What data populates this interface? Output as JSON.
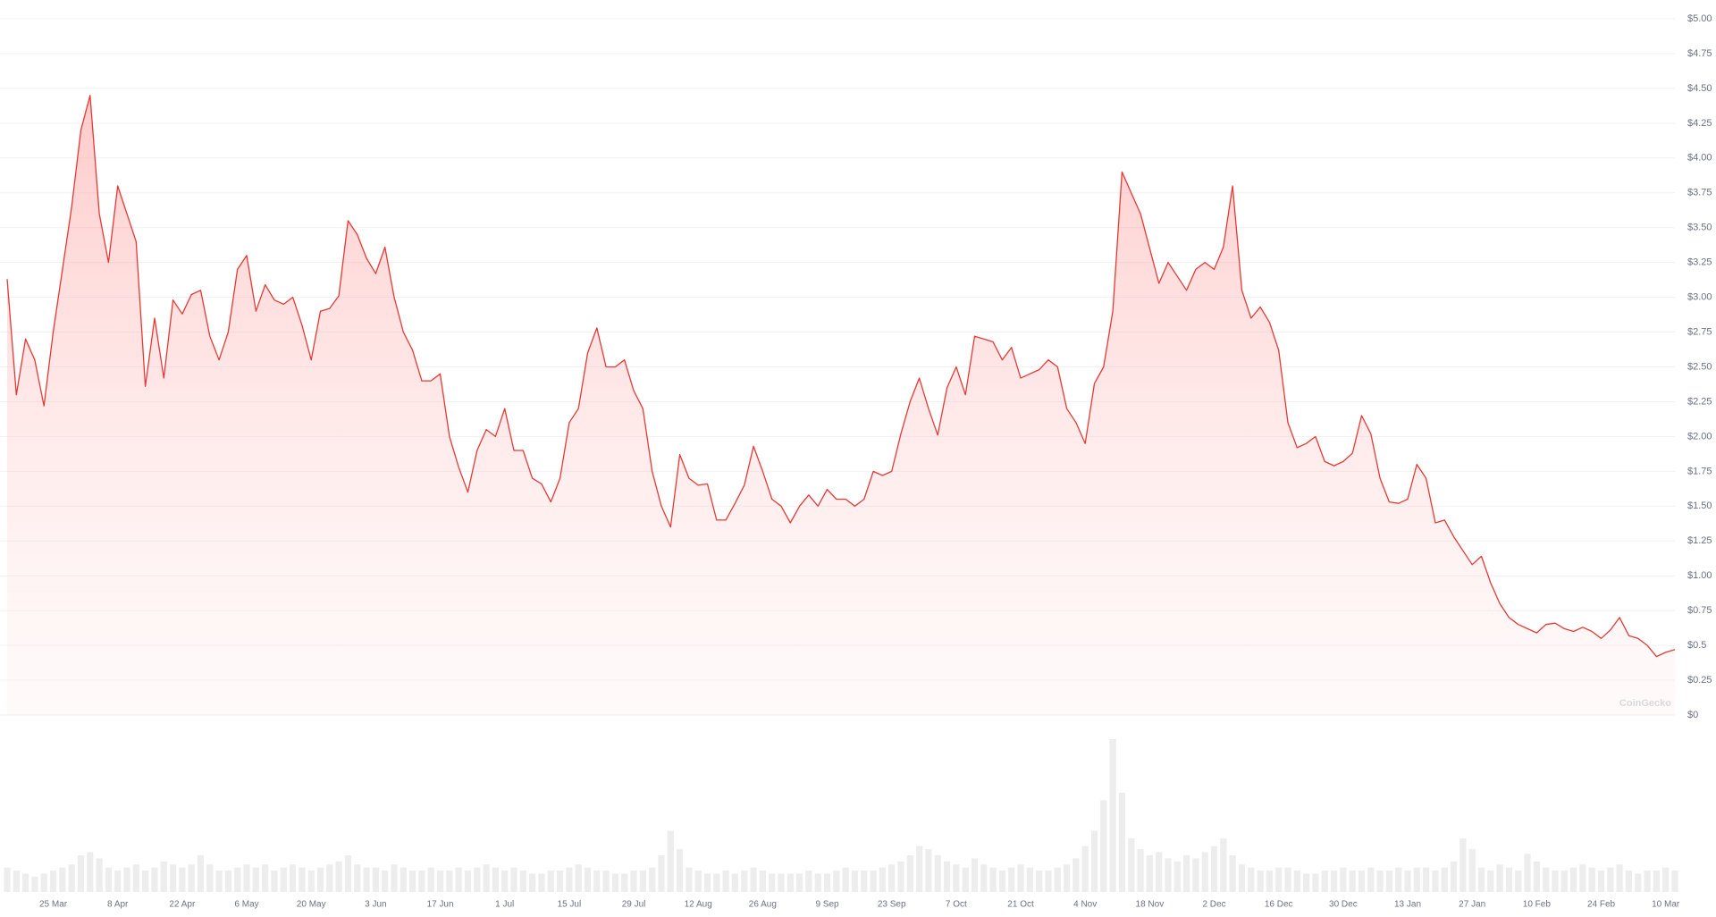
{
  "chart_data": {
    "type": "area",
    "watermark": "CoinGecko",
    "categories": [
      null,
      null,
      null,
      null,
      null,
      "25 Mar",
      null,
      null,
      null,
      null,
      null,
      null,
      "8 Apr",
      null,
      null,
      null,
      null,
      null,
      null,
      "22 Apr",
      null,
      null,
      null,
      null,
      null,
      null,
      "6 May",
      null,
      null,
      null,
      null,
      null,
      null,
      "20 May",
      null,
      null,
      null,
      null,
      null,
      null,
      "3 Jun",
      null,
      null,
      null,
      null,
      null,
      null,
      "17 Jun",
      null,
      null,
      null,
      null,
      null,
      null,
      "1 Jul",
      null,
      null,
      null,
      null,
      null,
      null,
      "15 Jul",
      null,
      null,
      null,
      null,
      null,
      null,
      "29 Jul",
      null,
      null,
      null,
      null,
      null,
      null,
      "12 Aug",
      null,
      null,
      null,
      null,
      null,
      null,
      "26 Aug",
      null,
      null,
      null,
      null,
      null,
      null,
      "9 Sep",
      null,
      null,
      null,
      null,
      null,
      null,
      "23 Sep",
      null,
      null,
      null,
      null,
      null,
      null,
      "7 Oct",
      null,
      null,
      null,
      null,
      null,
      null,
      "21 Oct",
      null,
      null,
      null,
      null,
      null,
      null,
      "4 Nov",
      null,
      null,
      null,
      null,
      null,
      null,
      "18 Nov",
      null,
      null,
      null,
      null,
      null,
      null,
      "2 Dec",
      null,
      null,
      null,
      null,
      null,
      null,
      "16 Dec",
      null,
      null,
      null,
      null,
      null,
      null,
      "30 Dec",
      null,
      null,
      null,
      null,
      null,
      null,
      "13 Jan",
      null,
      null,
      null,
      null,
      null,
      null,
      "27 Jan",
      null,
      null,
      null,
      null,
      null,
      null,
      "10 Feb",
      null,
      null,
      null,
      null,
      null,
      null,
      "24 Feb",
      null,
      null,
      null,
      null,
      null,
      null,
      "10 Mar",
      null
    ],
    "values": [
      3.13,
      2.3,
      2.7,
      2.55,
      2.22,
      2.75,
      3.2,
      3.65,
      4.2,
      4.45,
      3.6,
      3.25,
      3.8,
      3.6,
      3.4,
      2.36,
      2.85,
      2.42,
      2.98,
      2.88,
      3.02,
      3.05,
      2.72,
      2.55,
      2.75,
      3.2,
      3.3,
      2.9,
      3.09,
      2.98,
      2.95,
      3.0,
      2.8,
      2.55,
      2.9,
      2.92,
      3.01,
      3.55,
      3.45,
      3.28,
      3.17,
      3.36,
      3.0,
      2.75,
      2.62,
      2.4,
      2.4,
      2.45,
      2.0,
      1.78,
      1.6,
      1.9,
      2.05,
      2.0,
      2.2,
      1.9,
      1.9,
      1.7,
      1.66,
      1.53,
      1.7,
      2.1,
      2.2,
      2.6,
      2.78,
      2.5,
      2.5,
      2.55,
      2.33,
      2.2,
      1.75,
      1.5,
      1.35,
      1.87,
      1.7,
      1.65,
      1.66,
      1.4,
      1.4,
      1.52,
      1.65,
      1.93,
      1.75,
      1.55,
      1.5,
      1.38,
      1.5,
      1.58,
      1.5,
      1.62,
      1.55,
      1.55,
      1.5,
      1.55,
      1.75,
      1.72,
      1.75,
      2.02,
      2.25,
      2.42,
      2.2,
      2.01,
      2.35,
      2.5,
      2.3,
      2.72,
      2.7,
      2.68,
      2.55,
      2.64,
      2.42,
      2.45,
      2.48,
      2.55,
      2.5,
      2.2,
      2.1,
      1.95,
      2.38,
      2.5,
      2.9,
      3.9,
      3.75,
      3.6,
      3.35,
      3.1,
      3.25,
      3.15,
      3.05,
      3.2,
      3.25,
      3.2,
      3.36,
      3.8,
      3.05,
      2.85,
      2.93,
      2.82,
      2.62,
      2.1,
      1.92,
      1.95,
      2.0,
      1.82,
      1.79,
      1.82,
      1.88,
      2.15,
      2.02,
      1.7,
      1.53,
      1.52,
      1.55,
      1.8,
      1.7,
      1.38,
      1.4,
      1.28,
      1.18,
      1.08,
      1.14,
      0.95,
      0.8,
      0.7,
      0.65,
      0.62,
      0.59,
      0.65,
      0.66,
      0.62,
      0.6,
      0.63,
      0.6,
      0.55,
      0.61,
      0.7,
      0.57,
      0.55,
      0.5,
      0.42,
      0.45,
      0.47
    ],
    "volume": [
      16,
      14,
      12,
      10,
      12,
      14,
      16,
      18,
      24,
      26,
      22,
      16,
      14,
      16,
      18,
      14,
      16,
      20,
      18,
      16,
      18,
      24,
      18,
      14,
      14,
      16,
      18,
      16,
      18,
      14,
      16,
      18,
      16,
      14,
      16,
      18,
      20,
      24,
      18,
      16,
      16,
      14,
      18,
      16,
      14,
      14,
      16,
      14,
      14,
      16,
      14,
      16,
      18,
      16,
      14,
      16,
      14,
      12,
      12,
      14,
      14,
      16,
      18,
      16,
      14,
      14,
      12,
      12,
      14,
      14,
      16,
      24,
      40,
      28,
      16,
      14,
      12,
      12,
      14,
      12,
      14,
      16,
      14,
      12,
      12,
      12,
      12,
      14,
      12,
      12,
      14,
      16,
      14,
      14,
      14,
      16,
      18,
      20,
      24,
      30,
      28,
      24,
      20,
      18,
      16,
      22,
      18,
      16,
      14,
      16,
      18,
      16,
      14,
      14,
      16,
      18,
      22,
      30,
      40,
      60,
      100,
      65,
      35,
      28,
      24,
      26,
      22,
      20,
      24,
      22,
      26,
      30,
      35,
      24,
      18,
      16,
      14,
      14,
      16,
      16,
      14,
      12,
      12,
      14,
      14,
      16,
      14,
      14,
      16,
      14,
      14,
      16,
      14,
      16,
      16,
      14,
      16,
      20,
      35,
      28,
      16,
      14,
      18,
      16,
      14,
      25,
      20,
      16,
      14,
      14,
      16,
      18,
      16,
      14,
      16,
      18,
      14,
      12,
      14,
      14,
      16,
      14
    ],
    "color": "#e53935",
    "ylim": [
      0,
      5
    ],
    "yticks": [
      {
        "value": 0,
        "label": "$0"
      },
      {
        "value": 0.25,
        "label": "$0.25"
      },
      {
        "value": 0.5,
        "label": "$0.5"
      },
      {
        "value": 0.75,
        "label": "$0.75"
      },
      {
        "value": 1,
        "label": "$1.00"
      },
      {
        "value": 1.25,
        "label": "$1.25"
      },
      {
        "value": 1.5,
        "label": "$1.50"
      },
      {
        "value": 1.75,
        "label": "$1.75"
      },
      {
        "value": 2,
        "label": "$2.00"
      },
      {
        "value": 2.25,
        "label": "$2.25"
      },
      {
        "value": 2.5,
        "label": "$2.50"
      },
      {
        "value": 2.75,
        "label": "$2.75"
      },
      {
        "value": 3,
        "label": "$3.00"
      },
      {
        "value": 3.25,
        "label": "$3.25"
      },
      {
        "value": 3.5,
        "label": "$3.50"
      },
      {
        "value": 3.75,
        "label": "$3.75"
      },
      {
        "value": 4,
        "label": "$4.00"
      },
      {
        "value": 4.25,
        "label": "$4.25"
      },
      {
        "value": 4.5,
        "label": "$4.50"
      },
      {
        "value": 4.75,
        "label": "$4.75"
      },
      {
        "value": 5,
        "label": "$5.00"
      }
    ],
    "grid": true
  }
}
